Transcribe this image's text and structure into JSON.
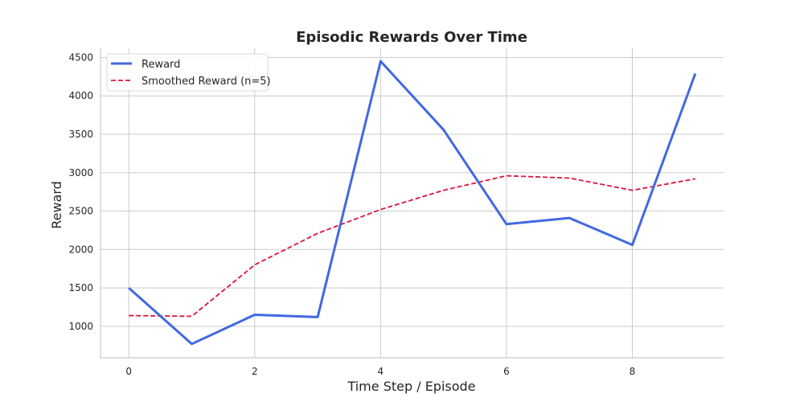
{
  "chart_data": {
    "type": "line",
    "title": "Episodic Rewards Over Time",
    "xlabel": "Time Step / Episode",
    "ylabel": "Reward",
    "x": [
      0,
      1,
      2,
      3,
      4,
      5,
      6,
      7,
      8,
      9
    ],
    "xlim": [
      -0.45,
      9.45
    ],
    "ylim": [
      590,
      4620
    ],
    "xticks": [
      0,
      2,
      4,
      6,
      8
    ],
    "yticks": [
      1000,
      1500,
      2000,
      2500,
      3000,
      3500,
      4000,
      4500
    ],
    "grid": true,
    "legend_position": "top-left",
    "series": [
      {
        "name": "Reward",
        "style": "solid",
        "color": "#4169e1",
        "values": [
          1500,
          770,
          1150,
          1120,
          4450,
          3560,
          2330,
          2410,
          2060,
          4290
        ]
      },
      {
        "name": "Smoothed Reward (n=5)",
        "style": "dashed",
        "color": "#dc143c",
        "values": [
          1140,
          1130,
          1800,
          2210,
          2520,
          2770,
          2960,
          2930,
          2770,
          2920
        ]
      }
    ]
  }
}
